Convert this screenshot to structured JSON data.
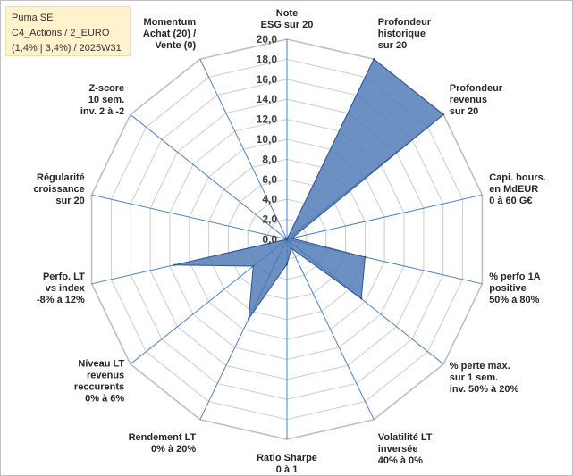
{
  "info_box": {
    "line1": "Puma SE",
    "line2": "C4_Actions / 2_EURO",
    "line3": "(1,4% | 3,4%) / 2025W31"
  },
  "colors": {
    "fill": "#4a78b3",
    "stroke": "#2f5597",
    "grid": "#d0d0d0",
    "spoke": "#4f81bd",
    "info_bg": "#fff2cc"
  },
  "chart_data": {
    "type": "radar",
    "title": "",
    "rmin": 0,
    "rmax": 20,
    "tick_step": 2,
    "tick_labels": [
      "0,0",
      "2,0",
      "4,0",
      "6,0",
      "8,0",
      "10,0",
      "12,0",
      "14,0",
      "16,0",
      "18,0",
      "20,0"
    ],
    "grid": true,
    "legend": "none",
    "axes": [
      [
        "Note",
        "ESG sur 20"
      ],
      [
        "Profondeur",
        "historique",
        "sur 20"
      ],
      [
        "Profondeur",
        "revenus",
        "sur 20"
      ],
      [
        "Capi. bours.",
        "en MdEUR",
        "0 à 60 G€"
      ],
      [
        "% perfo 1A",
        "positive",
        "50% à 80%"
      ],
      [
        "% perte max.",
        "sur 1 sem.",
        "inv. 50% à 20%"
      ],
      [
        "Volatilité LT",
        "inversée",
        "40% à 0%"
      ],
      [
        "Ratio Sharpe",
        "0 à 1"
      ],
      [
        "Rendement LT",
        "0% à 20%"
      ],
      [
        "Niveau LT",
        "revenus",
        "reccurents",
        "0% à 6%"
      ],
      [
        "Perfo. LT",
        "vs index",
        "-8% à 12%"
      ],
      [
        "Régularité",
        "croissance",
        "sur 20"
      ],
      [
        "Z-score",
        "10 sem.",
        "inv. 2 à -2"
      ],
      [
        "Momentum",
        "Achat (20) /",
        "Vente (0)"
      ]
    ],
    "series": [
      {
        "values": [
          0.0,
          20.0,
          20.0,
          0.5,
          8.0,
          9.5,
          1.0,
          2.5,
          8.8,
          4.3,
          11.5,
          0.0,
          0.0,
          0.0
        ]
      }
    ]
  }
}
